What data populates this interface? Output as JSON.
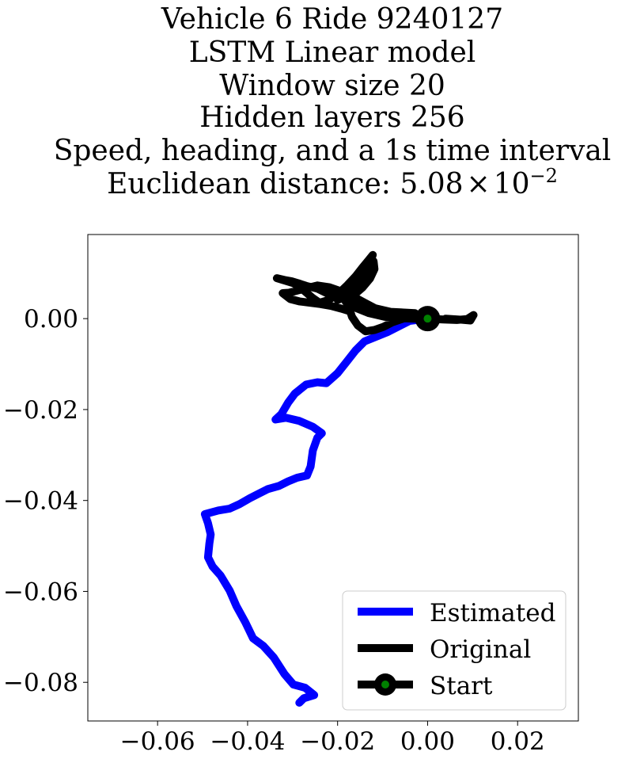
{
  "chart_data": {
    "type": "line",
    "title_lines": [
      "Vehicle 6 Ride 9240127",
      "LSTM Linear model",
      "Window size 20",
      "Hidden layers 256",
      "Speed, heading, and a 1s time interval"
    ],
    "metric": {
      "label": "Euclidean distance: ",
      "mantissa": "5.08",
      "times": "×",
      "base": "10",
      "exponent": "−2"
    },
    "xlabel": "",
    "ylabel": "",
    "xlim": [
      -0.0755,
      0.0335
    ],
    "ylim": [
      -0.0885,
      0.0185
    ],
    "xticks": [
      -0.06,
      -0.04,
      -0.02,
      0.0,
      0.02
    ],
    "xtick_labels": [
      "−0.06",
      "−0.04",
      "−0.02",
      "0.00",
      "0.02"
    ],
    "yticks": [
      0.0,
      -0.02,
      -0.04,
      -0.06,
      -0.08
    ],
    "ytick_labels": [
      "0.00",
      "−0.02",
      "−0.04",
      "−0.06",
      "−0.08"
    ],
    "grid": false,
    "legend_position": "lower-right",
    "series": [
      {
        "name": "Estimated",
        "color": "#0000ff",
        "points": [
          [
            0.0,
            0.0
          ],
          [
            -0.004,
            -0.0005
          ],
          [
            -0.009,
            -0.003
          ],
          [
            -0.014,
            -0.005
          ],
          [
            -0.016,
            -0.007
          ],
          [
            -0.018,
            -0.0095
          ],
          [
            -0.02,
            -0.012
          ],
          [
            -0.0225,
            -0.0142
          ],
          [
            -0.0245,
            -0.014
          ],
          [
            -0.027,
            -0.0145
          ],
          [
            -0.0295,
            -0.0165
          ],
          [
            -0.031,
            -0.0185
          ],
          [
            -0.0325,
            -0.021
          ],
          [
            -0.0338,
            -0.0222
          ],
          [
            -0.0315,
            -0.0218
          ],
          [
            -0.0285,
            -0.0225
          ],
          [
            -0.0255,
            -0.0238
          ],
          [
            -0.0235,
            -0.0252
          ],
          [
            -0.0245,
            -0.0262
          ],
          [
            -0.0255,
            -0.029
          ],
          [
            -0.026,
            -0.0325
          ],
          [
            -0.0268,
            -0.0345
          ],
          [
            -0.029,
            -0.035
          ],
          [
            -0.031,
            -0.0358
          ],
          [
            -0.033,
            -0.0368
          ],
          [
            -0.0355,
            -0.0375
          ],
          [
            -0.0375,
            -0.0385
          ],
          [
            -0.0395,
            -0.0395
          ],
          [
            -0.0418,
            -0.0408
          ],
          [
            -0.044,
            -0.0418
          ],
          [
            -0.0465,
            -0.0422
          ],
          [
            -0.0495,
            -0.043
          ],
          [
            -0.0488,
            -0.045
          ],
          [
            -0.0482,
            -0.0475
          ],
          [
            -0.0485,
            -0.0495
          ],
          [
            -0.0488,
            -0.0525
          ],
          [
            -0.0478,
            -0.0545
          ],
          [
            -0.046,
            -0.0565
          ],
          [
            -0.044,
            -0.0598
          ],
          [
            -0.0425,
            -0.0632
          ],
          [
            -0.0405,
            -0.0668
          ],
          [
            -0.0388,
            -0.0703
          ],
          [
            -0.0365,
            -0.072
          ],
          [
            -0.0342,
            -0.0745
          ],
          [
            -0.0318,
            -0.0782
          ],
          [
            -0.0298,
            -0.0805
          ],
          [
            -0.0272,
            -0.0812
          ],
          [
            -0.0252,
            -0.0828
          ],
          [
            -0.0275,
            -0.0835
          ],
          [
            -0.0285,
            -0.0845
          ]
        ]
      },
      {
        "name": "Original",
        "color": "#000000",
        "points": [
          [
            0.0,
            0.0
          ],
          [
            -0.003,
            0.0002
          ],
          [
            -0.0055,
            0.0008
          ],
          [
            -0.0085,
            0.0012
          ],
          [
            -0.0115,
            0.0022
          ],
          [
            -0.014,
            0.0035
          ],
          [
            -0.0168,
            0.005
          ],
          [
            -0.0192,
            0.006
          ],
          [
            -0.0218,
            0.0069
          ],
          [
            -0.0245,
            0.0073
          ],
          [
            -0.0265,
            0.0068
          ],
          [
            -0.0288,
            0.0062
          ],
          [
            -0.0308,
            0.0057
          ],
          [
            -0.0322,
            0.0056
          ],
          [
            -0.0305,
            0.0043
          ],
          [
            -0.0285,
            0.0038
          ],
          [
            -0.0262,
            0.0035
          ],
          [
            -0.0238,
            0.0032
          ],
          [
            -0.0215,
            0.0028
          ],
          [
            -0.0192,
            0.0022
          ],
          [
            -0.0172,
            0.0016
          ],
          [
            -0.0168,
            0.0004
          ],
          [
            -0.0155,
            -0.0015
          ],
          [
            -0.0138,
            -0.0028
          ],
          [
            -0.0118,
            -0.0025
          ],
          [
            -0.0098,
            -0.0018
          ],
          [
            -0.0078,
            -0.0008
          ],
          [
            -0.006,
            -0.0002
          ],
          [
            -0.0042,
            0.0004
          ],
          [
            -0.0028,
            0.0012
          ],
          [
            -0.0082,
            0.0015
          ],
          [
            -0.0122,
            0.0024
          ],
          [
            -0.0162,
            0.0038
          ],
          [
            -0.0198,
            0.0048
          ],
          [
            -0.0222,
            0.0055
          ],
          [
            -0.0245,
            0.0066
          ],
          [
            -0.027,
            0.0072
          ],
          [
            -0.0288,
            0.0078
          ],
          [
            -0.0302,
            0.0082
          ],
          [
            -0.0318,
            0.0085
          ],
          [
            -0.0335,
            0.0089
          ],
          [
            -0.0298,
            0.0078
          ],
          [
            -0.0275,
            0.0062
          ],
          [
            -0.0255,
            0.0045
          ],
          [
            -0.024,
            0.0035
          ],
          [
            -0.022,
            0.0041
          ],
          [
            -0.0198,
            0.0055
          ],
          [
            -0.0178,
            0.0074
          ],
          [
            -0.016,
            0.0093
          ],
          [
            -0.0145,
            0.0112
          ],
          [
            -0.013,
            0.013
          ],
          [
            -0.0122,
            0.014
          ],
          [
            -0.0128,
            0.0122
          ],
          [
            -0.0138,
            0.0105
          ],
          [
            -0.0152,
            0.0088
          ],
          [
            -0.0168,
            0.0068
          ],
          [
            -0.0185,
            0.0052
          ],
          [
            -0.02,
            0.0041
          ],
          [
            -0.017,
            0.0052
          ],
          [
            -0.015,
            0.0068
          ],
          [
            -0.0134,
            0.0088
          ],
          [
            -0.0124,
            0.0108
          ],
          [
            -0.012,
            0.0126
          ],
          [
            -0.0118,
            0.0109
          ],
          [
            -0.0128,
            0.0088
          ],
          [
            -0.0145,
            0.0068
          ],
          [
            -0.0165,
            0.0051
          ],
          [
            -0.0182,
            0.0037
          ],
          [
            -0.0158,
            0.0023
          ],
          [
            -0.013,
            0.0012
          ],
          [
            -0.0095,
            0.0004
          ],
          [
            -0.006,
            0.0001
          ],
          [
            -0.003,
            0.0
          ],
          [
            0.0,
            0.0
          ],
          [
            0.0035,
            -0.0002
          ],
          [
            0.0065,
            -0.0003
          ],
          [
            0.0088,
            -0.0001
          ],
          [
            0.0102,
            0.0008
          ],
          [
            0.0095,
            -0.0004
          ],
          [
            0.007,
            -0.0002
          ],
          [
            0.004,
            0.0
          ]
        ]
      }
    ],
    "start": {
      "name": "Start",
      "x": 0.0,
      "y": 0.0,
      "outer_color": "#000000",
      "inner_color": "#008000"
    }
  }
}
